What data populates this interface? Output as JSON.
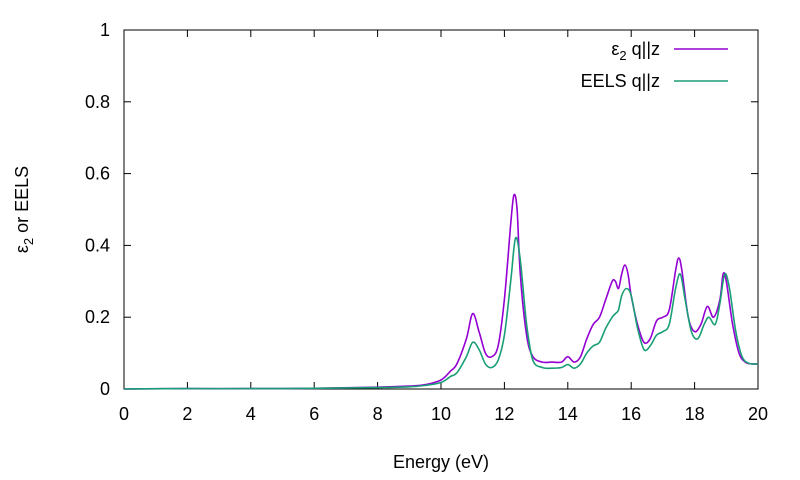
{
  "chart_data": {
    "type": "line",
    "xlabel": "Energy (eV)",
    "ylabel": {
      "base": "ε",
      "sub": "2",
      "rest": " or EELS"
    },
    "xlim": [
      0,
      20
    ],
    "ylim": [
      0,
      1
    ],
    "x_ticks": [
      0,
      2,
      4,
      6,
      8,
      10,
      12,
      14,
      16,
      18,
      20
    ],
    "y_ticks": [
      0,
      0.2,
      0.4,
      0.6,
      0.8,
      1
    ],
    "y_tick_labels": [
      "0",
      "0.2",
      "0.4",
      "0.6",
      "0.8",
      "1"
    ],
    "grid": false,
    "legend_position": "top-right",
    "series": [
      {
        "name": "ε2 q||z",
        "legend": {
          "base": "ε",
          "sub": "2",
          "rest": " q||z"
        },
        "color": "#9400d3",
        "points": [
          [
            0,
            0
          ],
          [
            2,
            0.001
          ],
          [
            4,
            0.001
          ],
          [
            6,
            0.002
          ],
          [
            8,
            0.005
          ],
          [
            9,
            0.008
          ],
          [
            9.5,
            0.012
          ],
          [
            10,
            0.025
          ],
          [
            10.3,
            0.05
          ],
          [
            10.5,
            0.07
          ],
          [
            10.8,
            0.14
          ],
          [
            11.0,
            0.21
          ],
          [
            11.2,
            0.16
          ],
          [
            11.4,
            0.1
          ],
          [
            11.6,
            0.09
          ],
          [
            11.8,
            0.12
          ],
          [
            12.0,
            0.25
          ],
          [
            12.2,
            0.46
          ],
          [
            12.3,
            0.54
          ],
          [
            12.4,
            0.5
          ],
          [
            12.5,
            0.32
          ],
          [
            12.7,
            0.15
          ],
          [
            12.9,
            0.09
          ],
          [
            13.2,
            0.075
          ],
          [
            13.5,
            0.075
          ],
          [
            13.8,
            0.075
          ],
          [
            14.0,
            0.09
          ],
          [
            14.2,
            0.075
          ],
          [
            14.4,
            0.09
          ],
          [
            14.6,
            0.14
          ],
          [
            14.8,
            0.18
          ],
          [
            15.0,
            0.2
          ],
          [
            15.2,
            0.25
          ],
          [
            15.4,
            0.3
          ],
          [
            15.5,
            0.3
          ],
          [
            15.6,
            0.28
          ],
          [
            15.7,
            0.32
          ],
          [
            15.8,
            0.345
          ],
          [
            15.9,
            0.32
          ],
          [
            16.0,
            0.26
          ],
          [
            16.2,
            0.18
          ],
          [
            16.4,
            0.13
          ],
          [
            16.6,
            0.14
          ],
          [
            16.8,
            0.19
          ],
          [
            17.0,
            0.2
          ],
          [
            17.2,
            0.22
          ],
          [
            17.4,
            0.33
          ],
          [
            17.5,
            0.365
          ],
          [
            17.6,
            0.33
          ],
          [
            17.8,
            0.2
          ],
          [
            18.0,
            0.16
          ],
          [
            18.2,
            0.18
          ],
          [
            18.4,
            0.23
          ],
          [
            18.6,
            0.2
          ],
          [
            18.8,
            0.25
          ],
          [
            18.9,
            0.32
          ],
          [
            19.0,
            0.3
          ],
          [
            19.2,
            0.18
          ],
          [
            19.4,
            0.1
          ],
          [
            19.6,
            0.075
          ],
          [
            19.8,
            0.07
          ],
          [
            20.0,
            0.07
          ]
        ]
      },
      {
        "name": "EELS q||z",
        "legend": {
          "base": "EELS q||z",
          "sub": "",
          "rest": ""
        },
        "color": "#1a9e77",
        "points": [
          [
            0,
            0
          ],
          [
            2,
            0.001
          ],
          [
            4,
            0.001
          ],
          [
            6,
            0.002
          ],
          [
            8,
            0.004
          ],
          [
            9,
            0.006
          ],
          [
            9.5,
            0.01
          ],
          [
            10,
            0.018
          ],
          [
            10.3,
            0.035
          ],
          [
            10.5,
            0.045
          ],
          [
            10.8,
            0.09
          ],
          [
            11.0,
            0.13
          ],
          [
            11.2,
            0.11
          ],
          [
            11.4,
            0.07
          ],
          [
            11.6,
            0.06
          ],
          [
            11.8,
            0.08
          ],
          [
            12.0,
            0.15
          ],
          [
            12.2,
            0.3
          ],
          [
            12.35,
            0.42
          ],
          [
            12.5,
            0.36
          ],
          [
            12.7,
            0.18
          ],
          [
            12.9,
            0.08
          ],
          [
            13.2,
            0.06
          ],
          [
            13.5,
            0.058
          ],
          [
            13.8,
            0.06
          ],
          [
            14.0,
            0.068
          ],
          [
            14.2,
            0.058
          ],
          [
            14.4,
            0.07
          ],
          [
            14.6,
            0.1
          ],
          [
            14.8,
            0.12
          ],
          [
            15.0,
            0.13
          ],
          [
            15.2,
            0.17
          ],
          [
            15.4,
            0.2
          ],
          [
            15.5,
            0.21
          ],
          [
            15.6,
            0.22
          ],
          [
            15.7,
            0.26
          ],
          [
            15.85,
            0.28
          ],
          [
            16.0,
            0.26
          ],
          [
            16.2,
            0.17
          ],
          [
            16.4,
            0.11
          ],
          [
            16.6,
            0.12
          ],
          [
            16.8,
            0.15
          ],
          [
            17.0,
            0.16
          ],
          [
            17.2,
            0.18
          ],
          [
            17.4,
            0.28
          ],
          [
            17.55,
            0.32
          ],
          [
            17.7,
            0.25
          ],
          [
            17.9,
            0.16
          ],
          [
            18.1,
            0.14
          ],
          [
            18.3,
            0.18
          ],
          [
            18.45,
            0.2
          ],
          [
            18.65,
            0.18
          ],
          [
            18.8,
            0.24
          ],
          [
            18.95,
            0.32
          ],
          [
            19.1,
            0.28
          ],
          [
            19.3,
            0.16
          ],
          [
            19.5,
            0.09
          ],
          [
            19.7,
            0.072
          ],
          [
            19.9,
            0.07
          ],
          [
            20.0,
            0.07
          ]
        ]
      }
    ]
  }
}
